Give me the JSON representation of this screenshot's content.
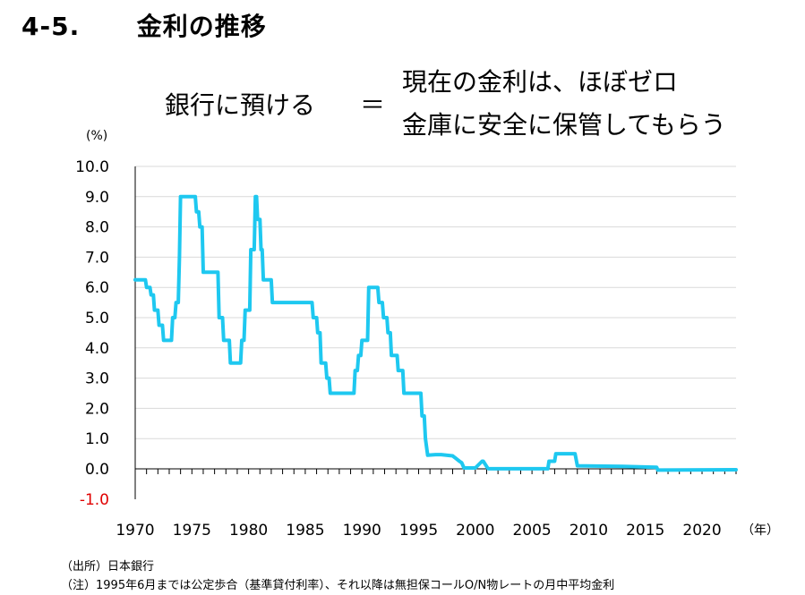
{
  "header": {
    "section_number": "4-5.",
    "section_title": "金利の推移"
  },
  "message": {
    "left": "銀行に預ける",
    "equals": "＝",
    "right_line1": "現在の金利は、ほぼゼロ",
    "right_line2": "金庫に安全に保管してもらう"
  },
  "notes": {
    "source": "（出所）日本銀行",
    "note": "（注）1995年6月までは公定歩合（基準貸付利率）、それ以降は無担保コールO/N物レートの月中平均金利"
  },
  "chart_data": {
    "type": "line",
    "ylabel": "(%)",
    "xlabel": "（年）",
    "xlim": [
      1970,
      2023
    ],
    "ylim": [
      -1.0,
      10.0
    ],
    "x_ticks": [
      1970,
      1975,
      1980,
      1985,
      1990,
      1995,
      2000,
      2005,
      2010,
      2015,
      2020
    ],
    "y_ticks": [
      "10.0",
      "9.0",
      "8.0",
      "7.0",
      "6.0",
      "5.0",
      "4.0",
      "3.0",
      "2.0",
      "1.0",
      "0.0",
      "-1.0"
    ],
    "grid": true,
    "colors": {
      "line": "#1EC8F0",
      "negative_tick": "#E00000",
      "grid": "#d9d9d9"
    },
    "series": [
      {
        "x": [
          1970.0,
          1970.9,
          1971.0,
          1971.3,
          1971.4,
          1971.6,
          1971.7,
          1972.0,
          1972.1,
          1972.4,
          1972.5,
          1973.2,
          1973.3,
          1973.5,
          1973.6,
          1973.8,
          1973.9,
          1974.0,
          1975.3,
          1975.4,
          1975.6,
          1975.7,
          1975.9,
          1976.0,
          1977.3,
          1977.4,
          1977.7,
          1977.8,
          1978.3,
          1978.4,
          1979.3,
          1979.4,
          1979.6,
          1979.7,
          1980.1,
          1980.2,
          1980.5,
          1980.6,
          1980.7,
          1980.8,
          1981.0,
          1981.1,
          1981.2,
          1981.3,
          1982.0,
          1982.1,
          1985.6,
          1985.7,
          1986.0,
          1986.1,
          1986.3,
          1986.4,
          1986.8,
          1986.9,
          1987.1,
          1987.2,
          1989.3,
          1989.4,
          1989.6,
          1989.7,
          1989.9,
          1990.0,
          1990.5,
          1990.6,
          1991.4,
          1991.5,
          1991.8,
          1991.9,
          1992.2,
          1992.3,
          1992.5,
          1992.6,
          1993.1,
          1993.2,
          1993.6,
          1993.7,
          1995.2,
          1995.3,
          1995.5,
          1995.6,
          1995.8,
          1996.5,
          1997.0,
          1998.0,
          1998.6,
          1998.8,
          1999.0,
          1999.1,
          2000.0,
          2000.6,
          2000.7,
          2001.1,
          2001.2,
          2006.4,
          2006.5,
          2007.0,
          2007.1,
          2008.8,
          2008.9,
          2009.0,
          2013.0,
          2016.0,
          2016.1,
          2023.0
        ],
        "y": [
          6.25,
          6.25,
          6.0,
          6.0,
          5.75,
          5.75,
          5.25,
          5.25,
          4.75,
          4.75,
          4.25,
          4.25,
          5.0,
          5.0,
          5.5,
          5.5,
          7.0,
          9.0,
          9.0,
          8.5,
          8.5,
          8.0,
          8.0,
          6.5,
          6.5,
          5.0,
          5.0,
          4.25,
          4.25,
          3.5,
          3.5,
          4.25,
          4.25,
          5.25,
          5.25,
          7.25,
          7.25,
          9.0,
          9.0,
          8.25,
          8.25,
          7.25,
          7.25,
          6.25,
          6.25,
          5.5,
          5.5,
          5.0,
          5.0,
          4.5,
          4.5,
          3.5,
          3.5,
          3.0,
          3.0,
          2.5,
          2.5,
          3.25,
          3.25,
          3.75,
          3.75,
          4.25,
          4.25,
          6.0,
          6.0,
          5.5,
          5.5,
          5.0,
          5.0,
          4.5,
          4.5,
          3.75,
          3.75,
          3.25,
          3.25,
          2.5,
          2.5,
          1.75,
          1.75,
          1.0,
          0.45,
          0.47,
          0.47,
          0.43,
          0.25,
          0.2,
          0.03,
          0.03,
          0.03,
          0.25,
          0.25,
          0.02,
          0.002,
          0.002,
          0.25,
          0.25,
          0.5,
          0.5,
          0.3,
          0.1,
          0.08,
          0.05,
          -0.04,
          -0.03
        ]
      }
    ]
  }
}
